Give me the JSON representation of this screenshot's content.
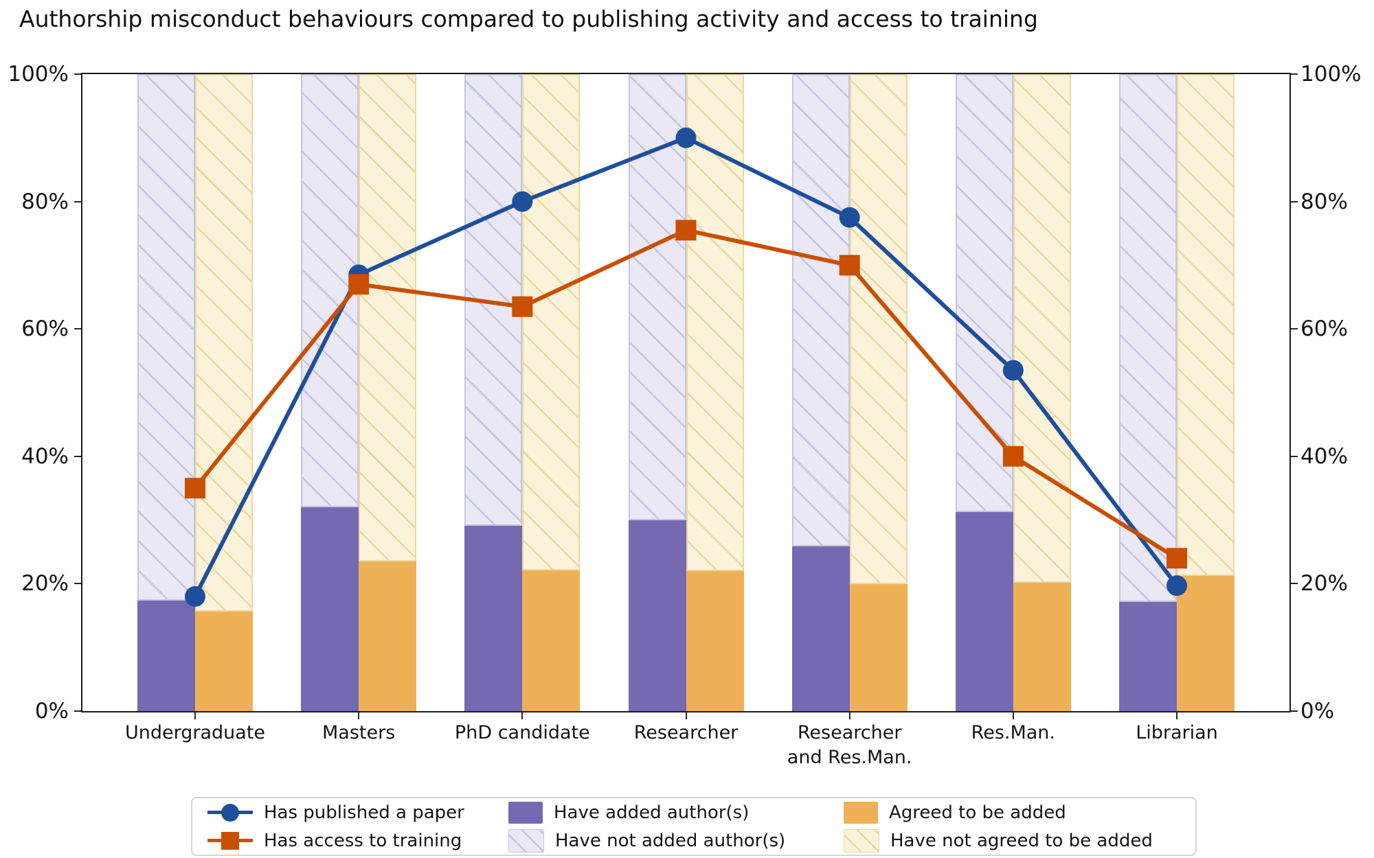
{
  "title": "Authorship misconduct behaviours compared to publishing activity and access to training",
  "chart_data": {
    "type": "bar+line combo",
    "title": "Authorship misconduct behaviours compared to publishing activity and access to training",
    "categories": [
      "Undergraduate",
      "Masters",
      "PhD candidate",
      "Researcher",
      "Researcher\nand Res.Man.",
      "Res.Man.",
      "Librarian"
    ],
    "ylim": [
      0,
      100
    ],
    "grid": false,
    "legend_position": "bottom",
    "yticks": [
      {
        "label": "0%",
        "value": 0
      },
      {
        "label": "20%",
        "value": 20
      },
      {
        "label": "40%",
        "value": 40
      },
      {
        "label": "60%",
        "value": 60
      },
      {
        "label": "80%",
        "value": 80
      },
      {
        "label": "100%",
        "value": 100
      }
    ],
    "line_series": [
      {
        "name": "Has published a paper",
        "marker": "circle",
        "color": "#1f4f9b",
        "values": [
          18,
          68.5,
          80,
          90,
          77.5,
          53.5,
          19.7
        ]
      },
      {
        "name": "Has access to training",
        "marker": "square",
        "color": "#c94f03",
        "values": [
          35,
          67,
          63.5,
          75.5,
          70,
          40,
          24
        ]
      }
    ],
    "bar_series": [
      {
        "name": "Have added author(s)",
        "color": "#7569b2",
        "values": [
          17.4,
          32,
          29.1,
          30,
          25.9,
          31.3,
          17.1
        ],
        "complement": {
          "name": "Have not added author(s)",
          "fill": "#e9e8f4",
          "hatch": "#c6c5e0"
        }
      },
      {
        "name": "Agreed to be added",
        "color": "#eeb156",
        "values": [
          15.6,
          23.5,
          22.1,
          22,
          19.9,
          20.1,
          21.2
        ],
        "complement": {
          "name": "Have not agreed to be added",
          "fill": "#fbf2da",
          "hatch": "#ebd9a1"
        }
      }
    ],
    "legend": {
      "items": [
        {
          "label": "Has published a paper",
          "kind": "line",
          "color": "#1f4f9b",
          "marker": "circle"
        },
        {
          "label": "Has access to training",
          "kind": "line",
          "color": "#c94f03",
          "marker": "square"
        },
        {
          "label": "Have added author(s)",
          "kind": "patch",
          "fill": "#7569b2"
        },
        {
          "label": "Have not added author(s)",
          "kind": "patch",
          "fill": "#e9e8f4",
          "hatch": "#c6c5e0"
        },
        {
          "label": "Agreed to be added",
          "kind": "patch",
          "fill": "#eeb156"
        },
        {
          "label": "Have not agreed to be added",
          "kind": "patch",
          "fill": "#fbf2da",
          "hatch": "#ebd9a1"
        }
      ]
    }
  }
}
